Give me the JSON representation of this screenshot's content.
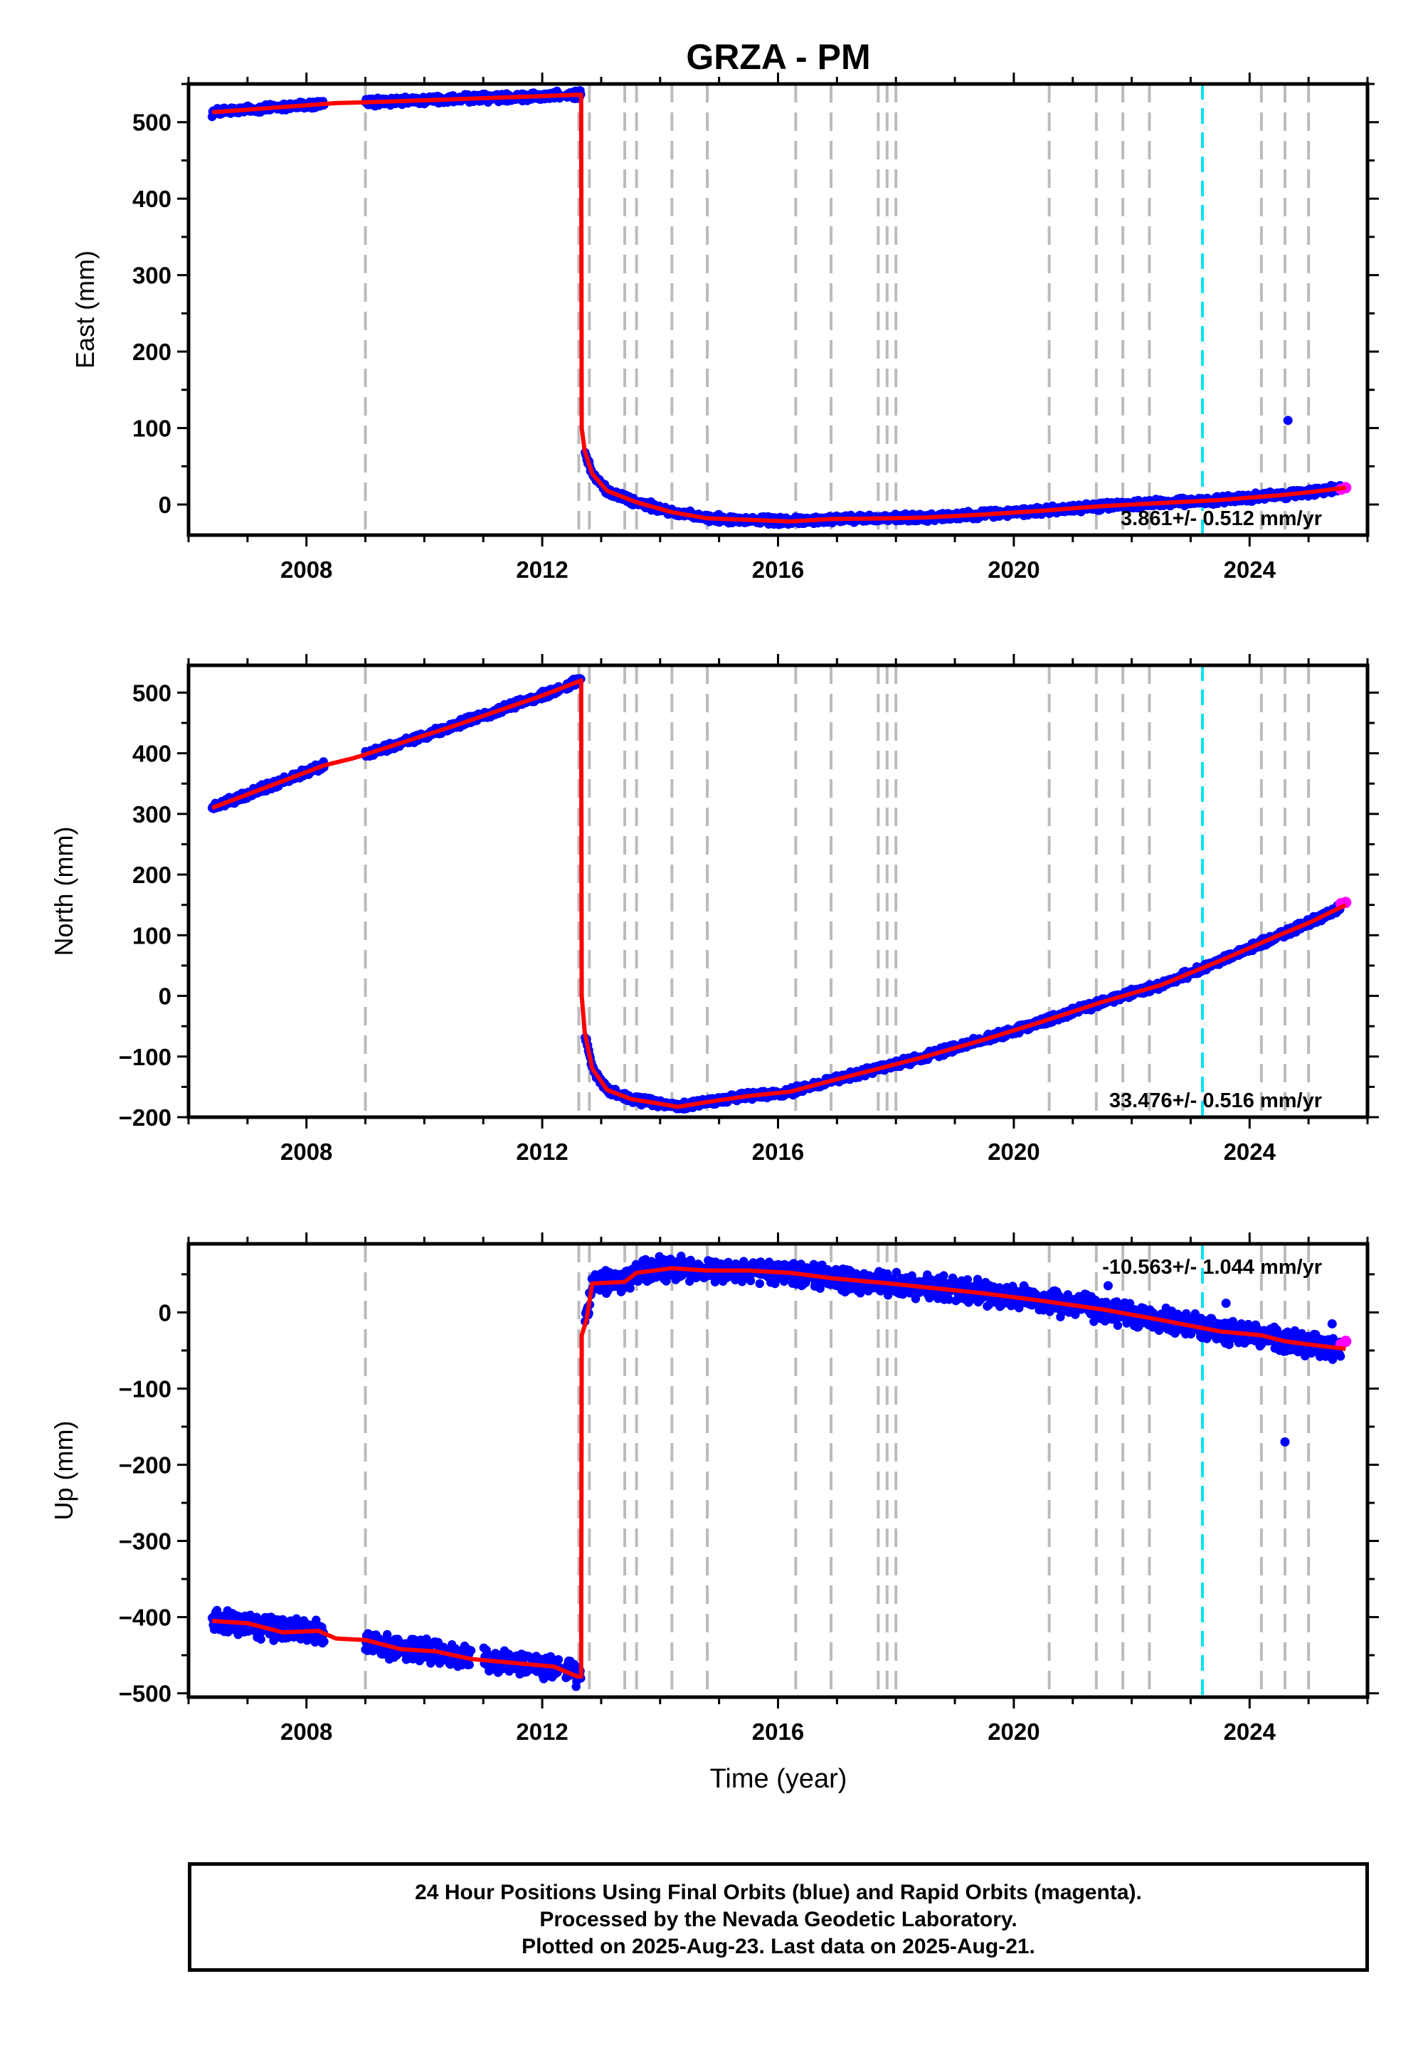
{
  "title": "GRZA - PM",
  "colors": {
    "final_orbits": "#0000ff",
    "rapid_orbits": "#ff00ff",
    "model_fit": "#ff0000",
    "equipment_change": "#bbbbbb",
    "earthquake": "#00e5ee"
  },
  "xlabel": "Time (year)",
  "footer": {
    "line1": "24 Hour Positions Using Final Orbits (blue) and Rapid Orbits (magenta).",
    "line2": "Processed by the Nevada Geodetic Laboratory.",
    "line3": "Plotted on 2025-Aug-23. Last data on 2025-Aug-21."
  },
  "chart_data": [
    {
      "type": "scatter",
      "component": "east",
      "ylabel": "East (mm)",
      "rate_label": "3.861+/- 0.512 mm/yr",
      "xlim": [
        2006.0,
        2026.0
      ],
      "ylim": [
        -40,
        550
      ],
      "x_ticks": [
        "2008",
        "2012",
        "2016",
        "2020",
        "2024"
      ],
      "y_ticks": [
        "0",
        "100",
        "200",
        "300",
        "400",
        "500"
      ],
      "equipment_change_years": [
        2009.0,
        2012.62,
        2012.8,
        2013.4,
        2013.6,
        2014.2,
        2014.8,
        2016.3,
        2016.9,
        2017.7,
        2017.85,
        2018.0,
        2020.6,
        2021.4,
        2021.85,
        2022.3,
        2024.2,
        2024.6,
        2025.0
      ],
      "earthquake_years": [
        2023.2
      ],
      "data_span": [
        2006.4,
        2025.63
      ],
      "fit": [
        [
          2006.4,
          513
        ],
        [
          2008.5,
          525
        ],
        [
          2009.0,
          526
        ],
        [
          2010.5,
          530
        ],
        [
          2012.66,
          536
        ],
        [
          2012.67,
          100
        ],
        [
          2012.72,
          70
        ],
        [
          2012.85,
          40
        ],
        [
          2013.1,
          18
        ],
        [
          2013.6,
          3
        ],
        [
          2014.2,
          -10
        ],
        [
          2014.8,
          -18
        ],
        [
          2015.5,
          -20
        ],
        [
          2016.2,
          -22
        ],
        [
          2016.9,
          -19
        ],
        [
          2017.9,
          -18
        ],
        [
          2018.5,
          -17
        ],
        [
          2019.5,
          -13
        ],
        [
          2020.5,
          -8
        ],
        [
          2021.5,
          -2
        ],
        [
          2022.5,
          2
        ],
        [
          2023.5,
          6
        ],
        [
          2024.5,
          12
        ],
        [
          2025.0,
          16
        ],
        [
          2025.63,
          22
        ]
      ],
      "outliers": [
        [
          2024.65,
          110
        ]
      ],
      "rapid": [
        [
          2025.55,
          20
        ],
        [
          2025.63,
          22
        ]
      ],
      "scatter_amp": 4,
      "gaps": [
        [
          2008.3,
          2009.0
        ],
        [
          2012.3,
          2012.4
        ]
      ]
    },
    {
      "type": "scatter",
      "component": "north",
      "ylabel": "North (mm)",
      "rate_label": "33.476+/- 0.516 mm/yr",
      "xlim": [
        2006.0,
        2026.0
      ],
      "ylim": [
        -200,
        545
      ],
      "x_ticks": [
        "2008",
        "2012",
        "2016",
        "2020",
        "2024"
      ],
      "y_ticks": [
        "-200",
        "-100",
        "0",
        "100",
        "200",
        "300",
        "400",
        "500"
      ],
      "equipment_change_years": [
        2009.0,
        2012.62,
        2012.8,
        2013.4,
        2013.6,
        2014.2,
        2014.8,
        2016.3,
        2016.9,
        2017.7,
        2017.85,
        2018.0,
        2020.6,
        2021.4,
        2021.85,
        2022.3,
        2024.2,
        2024.6,
        2025.0
      ],
      "earthquake_years": [
        2023.2
      ],
      "data_span": [
        2006.4,
        2025.63
      ],
      "fit": [
        [
          2006.4,
          310
        ],
        [
          2008.3,
          380
        ],
        [
          2008.8,
          392
        ],
        [
          2009.0,
          398
        ],
        [
          2010.5,
          445
        ],
        [
          2012.0,
          495
        ],
        [
          2012.66,
          520
        ],
        [
          2012.67,
          0
        ],
        [
          2012.72,
          -60
        ],
        [
          2012.85,
          -120
        ],
        [
          2013.1,
          -155
        ],
        [
          2013.5,
          -170
        ],
        [
          2014.0,
          -178
        ],
        [
          2014.3,
          -183
        ],
        [
          2014.8,
          -175
        ],
        [
          2015.5,
          -165
        ],
        [
          2016.2,
          -158
        ],
        [
          2016.9,
          -140
        ],
        [
          2017.9,
          -115
        ],
        [
          2018.5,
          -100
        ],
        [
          2019.5,
          -72
        ],
        [
          2020.5,
          -42
        ],
        [
          2021.5,
          -10
        ],
        [
          2022.5,
          18
        ],
        [
          2023.5,
          58
        ],
        [
          2024.5,
          100
        ],
        [
          2025.0,
          120
        ],
        [
          2025.63,
          150
        ]
      ],
      "outliers": [],
      "rapid": [
        [
          2025.55,
          152
        ],
        [
          2025.63,
          154
        ]
      ],
      "scatter_amp": 5,
      "gaps": [
        [
          2008.3,
          2009.0
        ],
        [
          2012.3,
          2012.4
        ]
      ]
    },
    {
      "type": "scatter",
      "component": "up",
      "ylabel": "Up (mm)",
      "rate_label": "-10.563+/- 1.044 mm/yr",
      "xlim": [
        2006.0,
        2026.0
      ],
      "ylim": [
        -505,
        90
      ],
      "x_ticks": [
        "2008",
        "2012",
        "2016",
        "2020",
        "2024"
      ],
      "y_ticks": [
        "-500",
        "-400",
        "-300",
        "-200",
        "-100",
        "0"
      ],
      "equipment_change_years": [
        2009.0,
        2012.62,
        2012.8,
        2013.4,
        2013.6,
        2014.2,
        2014.8,
        2016.3,
        2016.9,
        2017.7,
        2017.85,
        2018.0,
        2020.6,
        2021.4,
        2021.85,
        2022.3,
        2024.2,
        2024.6,
        2025.0
      ],
      "earthquake_years": [
        2023.2
      ],
      "data_span": [
        2006.4,
        2025.63
      ],
      "fit": [
        [
          2006.4,
          -405
        ],
        [
          2007.0,
          -408
        ],
        [
          2007.6,
          -420
        ],
        [
          2008.2,
          -418
        ],
        [
          2008.5,
          -428
        ],
        [
          2009.0,
          -430
        ],
        [
          2009.6,
          -442
        ],
        [
          2010.2,
          -445
        ],
        [
          2010.8,
          -455
        ],
        [
          2011.5,
          -460
        ],
        [
          2012.2,
          -465
        ],
        [
          2012.6,
          -478
        ],
        [
          2012.66,
          -478
        ],
        [
          2012.67,
          -30
        ],
        [
          2012.75,
          -10
        ],
        [
          2012.85,
          38
        ],
        [
          2013.4,
          40
        ],
        [
          2013.6,
          52
        ],
        [
          2014.2,
          58
        ],
        [
          2014.8,
          55
        ],
        [
          2015.5,
          55
        ],
        [
          2016.2,
          52
        ],
        [
          2016.9,
          45
        ],
        [
          2017.9,
          38
        ],
        [
          2018.5,
          33
        ],
        [
          2019.5,
          25
        ],
        [
          2020.5,
          15
        ],
        [
          2021.5,
          4
        ],
        [
          2022.5,
          -10
        ],
        [
          2023.5,
          -25
        ],
        [
          2024.2,
          -30
        ],
        [
          2024.6,
          -38
        ],
        [
          2025.0,
          -42
        ],
        [
          2025.63,
          -48
        ]
      ],
      "outliers": [
        [
          2024.6,
          -170
        ],
        [
          2023.6,
          12
        ],
        [
          2021.6,
          35
        ],
        [
          2025.4,
          -15
        ]
      ],
      "rapid": [
        [
          2025.55,
          -42
        ],
        [
          2025.63,
          -38
        ]
      ],
      "scatter_amp": 12,
      "gaps": [
        [
          2008.3,
          2009.0
        ],
        [
          2010.8,
          2011.0
        ],
        [
          2012.3,
          2012.4
        ]
      ]
    }
  ]
}
